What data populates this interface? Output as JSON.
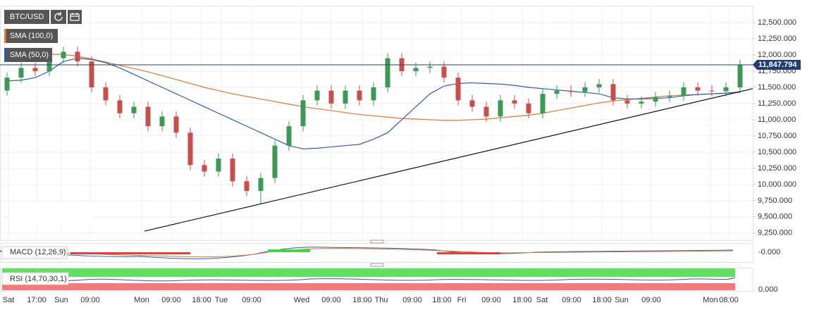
{
  "chart_data": {
    "type": "candlestick",
    "title": "BTC/USD",
    "candles": {
      "open": [
        11450,
        11650,
        11800,
        11750,
        11950,
        12050,
        11900,
        11500,
        11300,
        11100,
        11200,
        10900,
        11050,
        10800,
        10300,
        10200,
        10400,
        10050,
        9900,
        10100,
        10600,
        10900,
        11300,
        11450,
        11250,
        11450,
        11300,
        11500,
        11950,
        11750,
        11800,
        11820,
        11650,
        11300,
        11200,
        11050,
        11300,
        11250,
        11100,
        11400,
        11450,
        11430,
        11500,
        11550,
        11300,
        11250,
        11280,
        11350,
        11370,
        11500,
        11450,
        11440,
        11500
      ],
      "high": [
        11730,
        11880,
        11880,
        12030,
        12130,
        12130,
        11980,
        11580,
        11380,
        11280,
        11280,
        11130,
        11130,
        10880,
        10380,
        10480,
        10480,
        10130,
        10180,
        10680,
        10980,
        11380,
        11530,
        11530,
        11530,
        11530,
        11580,
        12030,
        12030,
        11880,
        11900,
        11900,
        11730,
        11380,
        11280,
        11380,
        11380,
        11330,
        11480,
        11530,
        11530,
        11580,
        11630,
        11630,
        11380,
        11360,
        11430,
        11450,
        11580,
        11580,
        11530,
        11580,
        11928
      ],
      "low": [
        11370,
        11570,
        11670,
        11670,
        11870,
        11820,
        11420,
        11220,
        11020,
        11020,
        10820,
        10820,
        10720,
        10220,
        10120,
        10120,
        9970,
        9820,
        9700,
        10020,
        10520,
        10820,
        11220,
        11170,
        11170,
        11220,
        11220,
        11420,
        11670,
        11670,
        11720,
        11570,
        11220,
        11120,
        10970,
        10970,
        11170,
        11020,
        11020,
        11320,
        11350,
        11350,
        11420,
        11220,
        11170,
        11170,
        11200,
        11270,
        11290,
        11370,
        11360,
        11360,
        11420
      ],
      "close": [
        11650,
        11800,
        11750,
        11950,
        12050,
        11900,
        11500,
        11300,
        11100,
        11200,
        10900,
        11050,
        10800,
        10300,
        10200,
        10400,
        10050,
        9900,
        10100,
        10600,
        10900,
        11300,
        11450,
        11250,
        11450,
        11300,
        11500,
        11950,
        11750,
        11800,
        11820,
        11650,
        11300,
        11200,
        11050,
        11300,
        11250,
        11100,
        11400,
        11450,
        11430,
        11500,
        11550,
        11300,
        11250,
        11280,
        11350,
        11370,
        11500,
        11450,
        11440,
        11500,
        11848
      ],
      "up_color": "#3d9a56",
      "down_color": "#c9504a"
    },
    "series": [
      {
        "name": "SMA (100,0)",
        "color": "#e0762e",
        "values": [
          11950,
          11980,
          12000,
          12010,
          12010,
          11980,
          11940,
          11890,
          11840,
          11790,
          11740,
          11680,
          11620,
          11560,
          11500,
          11450,
          11400,
          11360,
          11320,
          11280,
          11240,
          11200,
          11170,
          11140,
          11110,
          11080,
          11060,
          11040,
          11020,
          11010,
          11000,
          10990,
          10990,
          11000,
          11010,
          11030,
          11050,
          11070,
          11100,
          11140,
          11180,
          11220,
          11260,
          11290,
          11310,
          11330,
          11350,
          11370,
          11380,
          11390,
          11400,
          11410,
          11420
        ]
      },
      {
        "name": "SMA (50,0)",
        "color": "#2c5fa8",
        "values": [
          11600,
          11610,
          11650,
          11750,
          11900,
          11950,
          11930,
          11880,
          11800,
          11700,
          11600,
          11500,
          11400,
          11300,
          11200,
          11100,
          11000,
          10900,
          10800,
          10700,
          10600,
          10550,
          10560,
          10580,
          10600,
          10620,
          10700,
          10800,
          11000,
          11200,
          11400,
          11520,
          11560,
          11570,
          11560,
          11550,
          11530,
          11500,
          11480,
          11460,
          11440,
          11420,
          11400,
          11340,
          11320,
          11320,
          11330,
          11340,
          11370,
          11390,
          11400,
          11410,
          11430
        ]
      }
    ],
    "trendline": {
      "x": [
        10.25,
        53.4
      ],
      "y": [
        9280,
        11480
      ],
      "color": "#111111"
    },
    "last_price": {
      "value": 11847.794,
      "label": "11,847.794",
      "color": "#1f3f73"
    },
    "xlim": [
      0,
      53.4
    ],
    "ylim": [
      9150,
      12740
    ],
    "grid": true,
    "xticks": [
      {
        "value": 0.6,
        "label": "Sat"
      },
      {
        "value": 2.6,
        "label": "17:00"
      },
      {
        "value": 4.35,
        "label": "Sun"
      },
      {
        "value": 6.4,
        "label": "09:00"
      },
      {
        "value": 10.05,
        "label": "Mon"
      },
      {
        "value": 12.15,
        "label": "09:00"
      },
      {
        "value": 14.3,
        "label": "18:00"
      },
      {
        "value": 15.7,
        "label": "Tue"
      },
      {
        "value": 17.85,
        "label": "09:00"
      },
      {
        "value": 21.4,
        "label": "Wed"
      },
      {
        "value": 23.5,
        "label": "09:00"
      },
      {
        "value": 25.7,
        "label": "18:00"
      },
      {
        "value": 27.05,
        "label": "Thu"
      },
      {
        "value": 29.25,
        "label": "09:00"
      },
      {
        "value": 31.35,
        "label": "18:00"
      },
      {
        "value": 32.75,
        "label": "Fri"
      },
      {
        "value": 34.85,
        "label": "09:00"
      },
      {
        "value": 37.05,
        "label": "18:00"
      },
      {
        "value": 38.45,
        "label": "Sat"
      },
      {
        "value": 40.55,
        "label": "09:00"
      },
      {
        "value": 42.7,
        "label": "18:00"
      },
      {
        "value": 44.1,
        "label": "Sun"
      },
      {
        "value": 46.2,
        "label": "09:00"
      },
      {
        "value": 50.4,
        "label": "Mon"
      },
      {
        "value": 51.7,
        "label": "08:00"
      }
    ],
    "yticks": [
      {
        "value": 9250,
        "label": "9,250.000"
      },
      {
        "value": 9500,
        "label": "9,500.000"
      },
      {
        "value": 9750,
        "label": "9,750.000"
      },
      {
        "value": 10000,
        "label": "10,000.000"
      },
      {
        "value": 10250,
        "label": "10,250.000"
      },
      {
        "value": 10500,
        "label": "10,500.000"
      },
      {
        "value": 10750,
        "label": "10,750.000"
      },
      {
        "value": 11000,
        "label": "11,000.000"
      },
      {
        "value": 11250,
        "label": "11,250.000"
      },
      {
        "value": 11500,
        "label": "11,500.000"
      },
      {
        "value": 11750,
        "label": "11,750.000"
      },
      {
        "value": 12000,
        "label": "12,000.000"
      },
      {
        "value": 12250,
        "label": "12,250.000"
      },
      {
        "value": 12500,
        "label": "12,500.000"
      }
    ],
    "indicators": [
      {
        "name": "MACD (12,26,9)",
        "axis_label": "-0.000"
      },
      {
        "name": "RSI (14,70,30,1)",
        "axis_label": "0.000"
      }
    ]
  }
}
